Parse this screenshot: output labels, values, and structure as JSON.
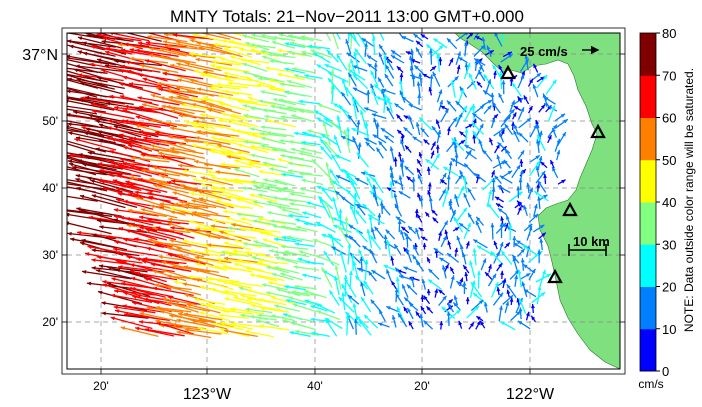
{
  "title": "MNTY Totals: 21−Nov−2011 13:00 GMT+0.000",
  "map": {
    "lat_labels": [
      "37°N",
      "50'",
      "40'",
      "30'",
      "20'"
    ],
    "lon_labels": [
      "20'",
      "123°W",
      "40'",
      "20'",
      "122°W"
    ],
    "scale_arrow_label": "25 cm/s",
    "scale_bar_label": "10 km",
    "land_color": "#7ee07e",
    "ocean_color": "#ffffff",
    "site_markers": 4
  },
  "colorbar": {
    "ticks": [
      "80",
      "70",
      "60",
      "50",
      "40",
      "30",
      "20",
      "10",
      "0"
    ],
    "unit": "cm/s",
    "note": "NOTE: Data outside color range will be saturated.",
    "colors": [
      "#0000ff",
      "#0080ff",
      "#00ffff",
      "#80ff80",
      "#ffff00",
      "#ff8000",
      "#ff0000",
      "#800000"
    ]
  }
}
